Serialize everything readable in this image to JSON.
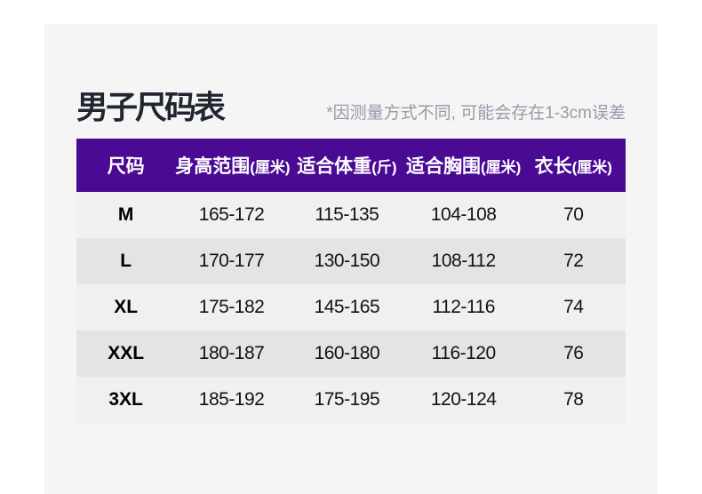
{
  "page": {
    "title": "男子尺码表",
    "note": "*因测量方式不同, 可能会存在1-3cm误差"
  },
  "colors": {
    "page_background": "#ffffff",
    "panel_background": "#f5f5f6",
    "title_text": "#1f2630",
    "note_text": "#9c98a8",
    "table_header_background": "#4a0a94",
    "table_header_text": "#ffffff",
    "row_light": "#f0f0f1",
    "row_dark": "#e4e4e6",
    "cell_text": "#121212"
  },
  "table": {
    "columns": [
      {
        "label": "尺码",
        "unit": ""
      },
      {
        "label": "身高范围",
        "unit": "(厘米)"
      },
      {
        "label": "适合体重",
        "unit": "(斤)"
      },
      {
        "label": "适合胸围",
        "unit": "(厘米)"
      },
      {
        "label": "衣长",
        "unit": "(厘米)"
      }
    ],
    "rows": [
      {
        "size": "M",
        "height_range": "165-172",
        "weight_range": "115-135",
        "chest_range": "104-108",
        "garment_length": "70"
      },
      {
        "size": "L",
        "height_range": "170-177",
        "weight_range": "130-150",
        "chest_range": "108-112",
        "garment_length": "72"
      },
      {
        "size": "XL",
        "height_range": "175-182",
        "weight_range": "145-165",
        "chest_range": "112-116",
        "garment_length": "74"
      },
      {
        "size": "XXL",
        "height_range": "180-187",
        "weight_range": "160-180",
        "chest_range": "116-120",
        "garment_length": "76"
      },
      {
        "size": "3XL",
        "height_range": "185-192",
        "weight_range": "175-195",
        "chest_range": "120-124",
        "garment_length": "78"
      }
    ]
  }
}
